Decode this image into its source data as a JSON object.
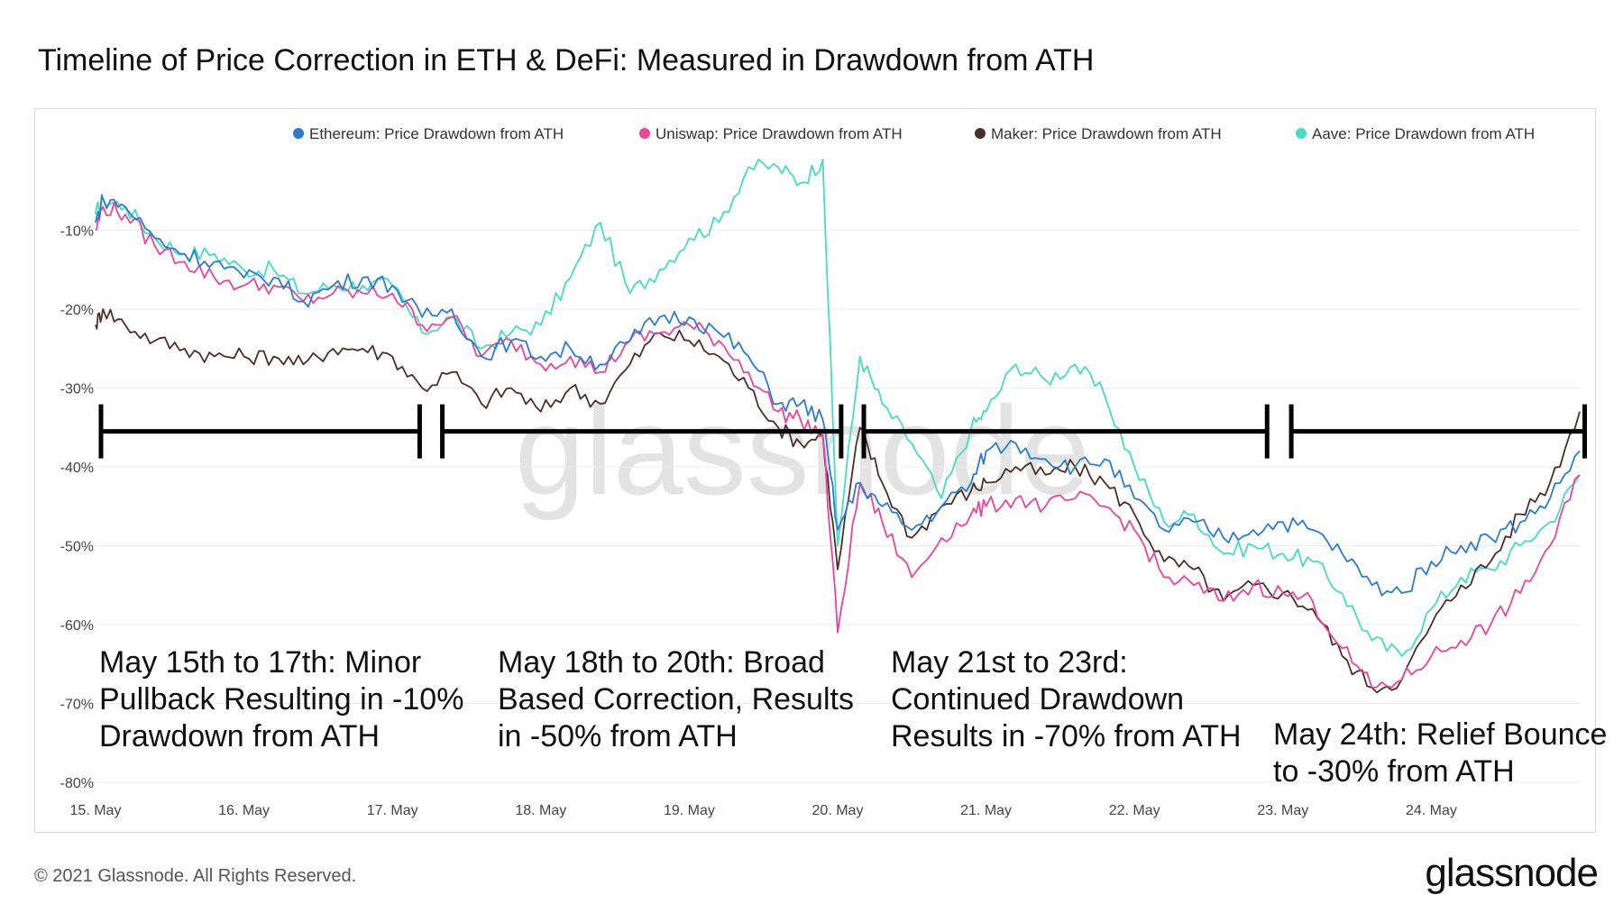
{
  "title": "Timeline of Price Correction in ETH & DeFi: Measured in Drawdown from ATH",
  "watermark": "glassnode",
  "footer": "© 2021 Glassnode. All Rights Reserved.",
  "brand": "glassnode",
  "colors": {
    "ethereum": "#2b7bd1",
    "uniswap": "#e8459b",
    "maker": "#4a2e2a",
    "aave": "#45dcc0",
    "grid": "#ececec",
    "brackets": "#000000"
  },
  "chart_data": {
    "type": "line",
    "x_ticks": [
      "15. May",
      "16. May",
      "17. May",
      "18. May",
      "19. May",
      "20. May",
      "21. May",
      "22. May",
      "23. May",
      "24. May"
    ],
    "y_ticks": [
      "-10%",
      "-20%",
      "-30%",
      "-40%",
      "-50%",
      "-60%",
      "-70%",
      "-80%"
    ],
    "y_range": [
      -80,
      0
    ],
    "x_range_days": [
      15,
      25
    ],
    "grid": true,
    "legend_position": "top-right",
    "series": [
      {
        "name": "Ethereum: Price Drawdown from ATH",
        "key": "ethereum",
        "points": [
          [
            15.0,
            -9
          ],
          [
            15.05,
            -6
          ],
          [
            15.2,
            -7
          ],
          [
            15.4,
            -11
          ],
          [
            15.6,
            -13
          ],
          [
            15.8,
            -14
          ],
          [
            16.0,
            -16
          ],
          [
            16.2,
            -16
          ],
          [
            16.4,
            -19
          ],
          [
            16.6,
            -17
          ],
          [
            16.8,
            -16
          ],
          [
            17.0,
            -17
          ],
          [
            17.2,
            -21
          ],
          [
            17.4,
            -20
          ],
          [
            17.6,
            -26
          ],
          [
            17.8,
            -24
          ],
          [
            18.0,
            -26
          ],
          [
            18.2,
            -25
          ],
          [
            18.4,
            -27
          ],
          [
            18.6,
            -24
          ],
          [
            18.8,
            -21
          ],
          [
            19.0,
            -21
          ],
          [
            19.2,
            -23
          ],
          [
            19.4,
            -26
          ],
          [
            19.6,
            -32
          ],
          [
            19.75,
            -32
          ],
          [
            19.9,
            -34
          ],
          [
            20.0,
            -48
          ],
          [
            20.15,
            -42
          ],
          [
            20.3,
            -45
          ],
          [
            20.5,
            -48
          ],
          [
            20.7,
            -45
          ],
          [
            20.9,
            -42
          ],
          [
            21.0,
            -38
          ],
          [
            21.2,
            -37
          ],
          [
            21.4,
            -39
          ],
          [
            21.6,
            -40
          ],
          [
            21.8,
            -39
          ],
          [
            22.0,
            -44
          ],
          [
            22.2,
            -48
          ],
          [
            22.4,
            -47
          ],
          [
            22.6,
            -49
          ],
          [
            22.8,
            -48
          ],
          [
            23.0,
            -47
          ],
          [
            23.2,
            -48
          ],
          [
            23.4,
            -51
          ],
          [
            23.6,
            -55
          ],
          [
            23.8,
            -56
          ],
          [
            24.0,
            -52
          ],
          [
            24.2,
            -50
          ],
          [
            24.4,
            -49
          ],
          [
            24.6,
            -47
          ],
          [
            24.8,
            -44
          ],
          [
            25.0,
            -38
          ]
        ]
      },
      {
        "name": "Uniswap: Price Drawdown from ATH",
        "key": "uniswap",
        "points": [
          [
            15.0,
            -10
          ],
          [
            15.05,
            -7
          ],
          [
            15.2,
            -8
          ],
          [
            15.4,
            -12
          ],
          [
            15.6,
            -14
          ],
          [
            15.8,
            -16
          ],
          [
            16.0,
            -17
          ],
          [
            16.2,
            -17
          ],
          [
            16.4,
            -19
          ],
          [
            16.6,
            -18
          ],
          [
            16.8,
            -18
          ],
          [
            17.0,
            -18
          ],
          [
            17.2,
            -22
          ],
          [
            17.4,
            -21
          ],
          [
            17.6,
            -26
          ],
          [
            17.8,
            -24
          ],
          [
            18.0,
            -27
          ],
          [
            18.2,
            -26
          ],
          [
            18.4,
            -28
          ],
          [
            18.6,
            -24
          ],
          [
            18.8,
            -23
          ],
          [
            19.0,
            -22
          ],
          [
            19.2,
            -24
          ],
          [
            19.4,
            -28
          ],
          [
            19.6,
            -33
          ],
          [
            19.75,
            -34
          ],
          [
            19.9,
            -36
          ],
          [
            20.0,
            -61
          ],
          [
            20.15,
            -42
          ],
          [
            20.3,
            -47
          ],
          [
            20.5,
            -54
          ],
          [
            20.7,
            -49
          ],
          [
            20.9,
            -46
          ],
          [
            21.0,
            -45
          ],
          [
            21.2,
            -44
          ],
          [
            21.4,
            -45
          ],
          [
            21.6,
            -44
          ],
          [
            21.8,
            -45
          ],
          [
            22.0,
            -48
          ],
          [
            22.2,
            -54
          ],
          [
            22.4,
            -55
          ],
          [
            22.6,
            -57
          ],
          [
            22.8,
            -55
          ],
          [
            23.0,
            -56
          ],
          [
            23.2,
            -57
          ],
          [
            23.4,
            -63
          ],
          [
            23.6,
            -68
          ],
          [
            23.8,
            -67
          ],
          [
            24.0,
            -64
          ],
          [
            24.2,
            -62
          ],
          [
            24.4,
            -60
          ],
          [
            24.6,
            -56
          ],
          [
            24.8,
            -50
          ],
          [
            25.0,
            -41
          ]
        ]
      },
      {
        "name": "Maker: Price Drawdown from ATH",
        "key": "maker",
        "points": [
          [
            15.0,
            -22
          ],
          [
            15.05,
            -20
          ],
          [
            15.2,
            -22
          ],
          [
            15.4,
            -24
          ],
          [
            15.6,
            -25
          ],
          [
            15.8,
            -26
          ],
          [
            16.0,
            -26
          ],
          [
            16.2,
            -26
          ],
          [
            16.4,
            -27
          ],
          [
            16.6,
            -25
          ],
          [
            16.8,
            -25
          ],
          [
            17.0,
            -26
          ],
          [
            17.2,
            -30
          ],
          [
            17.4,
            -28
          ],
          [
            17.6,
            -32
          ],
          [
            17.8,
            -30
          ],
          [
            18.0,
            -33
          ],
          [
            18.2,
            -30
          ],
          [
            18.4,
            -32
          ],
          [
            18.6,
            -27
          ],
          [
            18.8,
            -23
          ],
          [
            19.0,
            -24
          ],
          [
            19.2,
            -26
          ],
          [
            19.4,
            -30
          ],
          [
            19.6,
            -35
          ],
          [
            19.75,
            -37
          ],
          [
            19.9,
            -36
          ],
          [
            20.0,
            -53
          ],
          [
            20.15,
            -35
          ],
          [
            20.3,
            -42
          ],
          [
            20.5,
            -49
          ],
          [
            20.7,
            -45
          ],
          [
            20.9,
            -43
          ],
          [
            21.0,
            -42
          ],
          [
            21.2,
            -40
          ],
          [
            21.4,
            -41
          ],
          [
            21.6,
            -40
          ],
          [
            21.8,
            -42
          ],
          [
            22.0,
            -46
          ],
          [
            22.2,
            -52
          ],
          [
            22.4,
            -53
          ],
          [
            22.6,
            -57
          ],
          [
            22.8,
            -55
          ],
          [
            23.0,
            -56
          ],
          [
            23.2,
            -58
          ],
          [
            23.4,
            -64
          ],
          [
            23.6,
            -68
          ],
          [
            23.8,
            -67
          ],
          [
            24.0,
            -60
          ],
          [
            24.2,
            -55
          ],
          [
            24.4,
            -52
          ],
          [
            24.6,
            -46
          ],
          [
            24.8,
            -42
          ],
          [
            25.0,
            -33
          ]
        ]
      },
      {
        "name": "Aave: Price Drawdown from ATH",
        "key": "aave",
        "points": [
          [
            15.0,
            -8
          ],
          [
            15.05,
            -6
          ],
          [
            15.2,
            -7
          ],
          [
            15.4,
            -11
          ],
          [
            15.6,
            -13
          ],
          [
            15.8,
            -13
          ],
          [
            16.0,
            -15
          ],
          [
            16.2,
            -15
          ],
          [
            16.4,
            -18
          ],
          [
            16.6,
            -17
          ],
          [
            16.8,
            -17
          ],
          [
            17.0,
            -17
          ],
          [
            17.2,
            -23
          ],
          [
            17.4,
            -21
          ],
          [
            17.6,
            -25
          ],
          [
            17.8,
            -23
          ],
          [
            18.0,
            -22
          ],
          [
            18.2,
            -16
          ],
          [
            18.4,
            -9
          ],
          [
            18.6,
            -18
          ],
          [
            18.8,
            -15
          ],
          [
            19.0,
            -11
          ],
          [
            19.2,
            -9
          ],
          [
            19.4,
            -2
          ],
          [
            19.6,
            -2
          ],
          [
            19.75,
            -4
          ],
          [
            19.9,
            -1
          ],
          [
            20.0,
            -50
          ],
          [
            20.15,
            -26
          ],
          [
            20.3,
            -32
          ],
          [
            20.5,
            -37
          ],
          [
            20.7,
            -44
          ],
          [
            20.9,
            -35
          ],
          [
            21.0,
            -33
          ],
          [
            21.2,
            -27
          ],
          [
            21.4,
            -29
          ],
          [
            21.6,
            -27
          ],
          [
            21.8,
            -31
          ],
          [
            22.0,
            -40
          ],
          [
            22.2,
            -47
          ],
          [
            22.4,
            -46
          ],
          [
            22.6,
            -51
          ],
          [
            22.8,
            -50
          ],
          [
            23.0,
            -51
          ],
          [
            23.2,
            -52
          ],
          [
            23.4,
            -56
          ],
          [
            23.6,
            -62
          ],
          [
            23.8,
            -64
          ],
          [
            24.0,
            -58
          ],
          [
            24.2,
            -54
          ],
          [
            24.4,
            -53
          ],
          [
            24.6,
            -50
          ],
          [
            24.8,
            -47
          ],
          [
            25.0,
            -41
          ]
        ]
      }
    ],
    "phases": [
      {
        "label": "May 15th to 17th: Minor\nPullback Resulting in -10%\nDrawdown from ATH"
      },
      {
        "label": "May 18th to 20th: Broad\nBased Correction, Results\nin -50% from ATH"
      },
      {
        "label": "May 21st to 23rd:\nContinued Drawdown\nResults in -70% from ATH"
      },
      {
        "label": "May 24th: Relief Bounce\nto -30% from ATH"
      }
    ]
  }
}
